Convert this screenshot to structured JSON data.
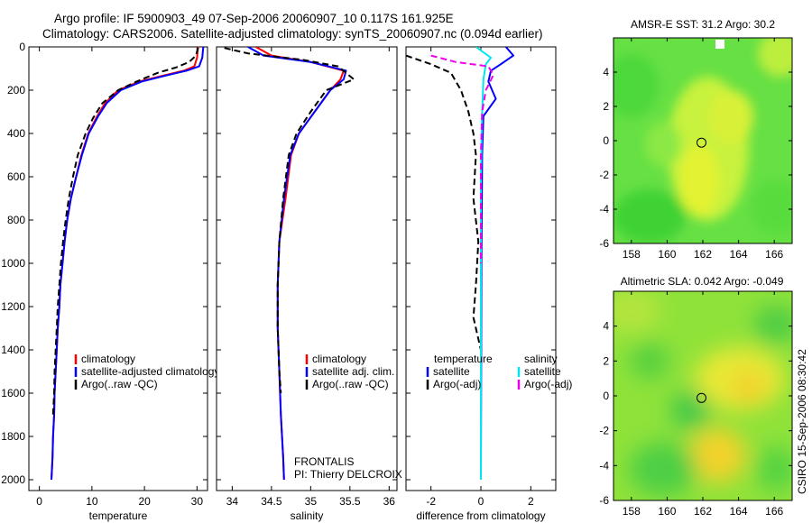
{
  "header": {
    "line1": "Argo profile: IF 5900903_49 07-Sep-2006 20060907_10 0.117S 161.925E",
    "line2": "Climatology: CARS2006. Satellite-adjusted climatology: synTS_20060907.nc (0.094d earlier)"
  },
  "side_credit": "CSIRO 15-Sep-2006 08:30:42",
  "colors": {
    "climatology": "#ff0000",
    "satellite": "#0000ff",
    "argo": "#000000",
    "sal_satellite": "#00e5ee",
    "sal_argo": "#ee00ee"
  },
  "chart_data": [
    {
      "type": "line",
      "id": "temperature",
      "xlabel": "temperature",
      "xlim": [
        -2,
        32
      ],
      "ylim": [
        0,
        2050
      ],
      "y_reversed": true,
      "xticks": [
        0,
        10,
        20,
        30
      ],
      "yticks": [
        0,
        200,
        400,
        600,
        800,
        1000,
        1200,
        1400,
        1600,
        1800,
        2000
      ],
      "legend": [
        "climatology",
        "satellite-adjusted climatology",
        "Argo(..raw -QC)"
      ],
      "series": [
        {
          "name": "climatology",
          "color": "#ff0000",
          "dash": "solid",
          "points": [
            [
              30.2,
              0
            ],
            [
              30.0,
              50
            ],
            [
              29.5,
              90
            ],
            [
              27.5,
              110
            ],
            [
              24.0,
              130
            ],
            [
              19.0,
              160
            ],
            [
              15.0,
              200
            ],
            [
              12.5,
              260
            ],
            [
              11.0,
              320
            ],
            [
              9.3,
              400
            ],
            [
              8.0,
              500
            ],
            [
              7.0,
              600
            ],
            [
              6.0,
              700
            ],
            [
              5.3,
              800
            ],
            [
              4.8,
              900
            ],
            [
              4.4,
              1000
            ],
            [
              4.0,
              1100
            ],
            [
              3.8,
              1200
            ],
            [
              3.5,
              1300
            ],
            [
              3.3,
              1400
            ],
            [
              3.1,
              1500
            ],
            [
              2.9,
              1600
            ],
            [
              2.8,
              1700
            ],
            [
              2.6,
              1800
            ],
            [
              2.5,
              1900
            ],
            [
              2.3,
              2000
            ]
          ]
        },
        {
          "name": "satellite-adjusted climatology",
          "color": "#0000ff",
          "dash": "solid",
          "points": [
            [
              31.2,
              0
            ],
            [
              31.0,
              50
            ],
            [
              30.4,
              90
            ],
            [
              28.0,
              110
            ],
            [
              24.5,
              130
            ],
            [
              19.5,
              160
            ],
            [
              15.5,
              200
            ],
            [
              12.8,
              260
            ],
            [
              11.2,
              320
            ],
            [
              9.4,
              400
            ],
            [
              8.1,
              500
            ],
            [
              7.0,
              600
            ],
            [
              6.0,
              700
            ],
            [
              5.3,
              800
            ],
            [
              4.8,
              900
            ],
            [
              4.4,
              1000
            ],
            [
              4.0,
              1100
            ],
            [
              3.8,
              1200
            ],
            [
              3.5,
              1300
            ],
            [
              3.3,
              1400
            ],
            [
              3.1,
              1500
            ],
            [
              2.9,
              1600
            ],
            [
              2.8,
              1700
            ],
            [
              2.6,
              1800
            ],
            [
              2.5,
              1900
            ],
            [
              2.3,
              2000
            ]
          ]
        },
        {
          "name": "Argo(..raw -QC)",
          "color": "#000000",
          "dash": "dashed",
          "points": [
            [
              30.2,
              5
            ],
            [
              29.8,
              40
            ],
            [
              28.5,
              70
            ],
            [
              26.0,
              95
            ],
            [
              22.5,
              120
            ],
            [
              18.5,
              160
            ],
            [
              15.0,
              200
            ],
            [
              12.0,
              260
            ],
            [
              10.2,
              330
            ],
            [
              8.8,
              400
            ],
            [
              7.3,
              500
            ],
            [
              6.4,
              600
            ],
            [
              5.6,
              700
            ],
            [
              5.0,
              800
            ],
            [
              4.5,
              900
            ],
            [
              4.1,
              1000
            ],
            [
              3.8,
              1100
            ],
            [
              3.5,
              1200
            ],
            [
              3.3,
              1300
            ],
            [
              3.1,
              1400
            ],
            [
              2.9,
              1500
            ],
            [
              2.8,
              1600
            ],
            [
              2.6,
              1700
            ]
          ]
        }
      ]
    },
    {
      "type": "line",
      "id": "salinity",
      "xlabel": "salinity",
      "xlim": [
        33.8,
        36.1
      ],
      "ylim": [
        0,
        2050
      ],
      "y_reversed": true,
      "xticks": [
        34,
        34.5,
        35,
        35.5,
        36
      ],
      "legend": [
        "climatology",
        "satellite adj. clim.",
        "Argo(..raw -QC)"
      ],
      "annotation": [
        "FRONTALIS",
        "PI: Thierry DELCROIX"
      ],
      "series": [
        {
          "name": "climatology",
          "color": "#ff0000",
          "dash": "solid",
          "points": [
            [
              34.3,
              0
            ],
            [
              34.5,
              40
            ],
            [
              35.0,
              70
            ],
            [
              35.42,
              110
            ],
            [
              35.38,
              150
            ],
            [
              35.25,
              200
            ],
            [
              35.05,
              300
            ],
            [
              34.85,
              400
            ],
            [
              34.75,
              500
            ],
            [
              34.68,
              700
            ],
            [
              34.6,
              900
            ],
            [
              34.58,
              1100
            ],
            [
              34.58,
              1300
            ],
            [
              34.6,
              1500
            ],
            [
              34.62,
              1700
            ],
            [
              34.65,
              1900
            ],
            [
              34.66,
              2000
            ]
          ]
        },
        {
          "name": "satellite adj. clim.",
          "color": "#0000ff",
          "dash": "solid",
          "points": [
            [
              34.2,
              0
            ],
            [
              34.4,
              40
            ],
            [
              35.0,
              70
            ],
            [
              35.45,
              110
            ],
            [
              35.42,
              150
            ],
            [
              35.25,
              200
            ],
            [
              35.05,
              300
            ],
            [
              34.85,
              400
            ],
            [
              34.74,
              500
            ],
            [
              34.66,
              700
            ],
            [
              34.6,
              900
            ],
            [
              34.58,
              1100
            ],
            [
              34.58,
              1300
            ],
            [
              34.6,
              1500
            ],
            [
              34.62,
              1700
            ],
            [
              34.65,
              1900
            ],
            [
              34.66,
              2000
            ]
          ]
        },
        {
          "name": "Argo(..raw -QC)",
          "color": "#000000",
          "dash": "dashed",
          "points": [
            [
              33.9,
              5
            ],
            [
              34.2,
              30
            ],
            [
              34.9,
              60
            ],
            [
              35.35,
              90
            ],
            [
              35.55,
              150
            ],
            [
              35.2,
              200
            ],
            [
              35.0,
              300
            ],
            [
              34.82,
              400
            ],
            [
              34.72,
              500
            ],
            [
              34.65,
              700
            ],
            [
              34.6,
              900
            ],
            [
              34.58,
              1100
            ],
            [
              34.58,
              1300
            ],
            [
              34.6,
              1500
            ],
            [
              34.62,
              1600
            ]
          ]
        }
      ]
    },
    {
      "type": "line",
      "id": "difference",
      "xlabel": "difference from climatology",
      "xlim": [
        -3,
        3
      ],
      "ylim": [
        0,
        2050
      ],
      "y_reversed": true,
      "xticks": [
        -2,
        0,
        2
      ],
      "legend_temperature_title": "temperature",
      "legend_salinity_title": "salinity",
      "legend": [
        "satellite",
        "Argo(-adj)",
        "satellite",
        "Argo(-adj)"
      ],
      "series": [
        {
          "name": "temperature satellite",
          "color": "#0000ff",
          "dash": "solid",
          "points": [
            [
              1.0,
              0
            ],
            [
              1.3,
              40
            ],
            [
              0.8,
              80
            ],
            [
              0.4,
              110
            ],
            [
              0.3,
              160
            ],
            [
              0.6,
              240
            ],
            [
              0.1,
              320
            ],
            [
              0.05,
              500
            ],
            [
              0.02,
              1000
            ],
            [
              0.0,
              2000
            ]
          ]
        },
        {
          "name": "temperature Argo(-adj)",
          "color": "#000000",
          "dash": "dashed",
          "points": [
            [
              -3.0,
              40
            ],
            [
              -2.0,
              80
            ],
            [
              -1.2,
              120
            ],
            [
              -0.8,
              200
            ],
            [
              -0.5,
              300
            ],
            [
              -0.3,
              400
            ],
            [
              -0.2,
              500
            ],
            [
              -0.3,
              700
            ],
            [
              -0.1,
              900
            ],
            [
              -0.2,
              1100
            ],
            [
              -0.3,
              1250
            ],
            [
              0.0,
              1400
            ],
            [
              0.0,
              1600
            ]
          ]
        },
        {
          "name": "salinity satellite",
          "color": "#00e5ee",
          "dash": "solid",
          "points": [
            [
              -0.2,
              0
            ],
            [
              0.4,
              50
            ],
            [
              0.2,
              80
            ],
            [
              0.1,
              150
            ],
            [
              0.05,
              300
            ],
            [
              0.0,
              600
            ],
            [
              0.0,
              1000
            ],
            [
              0.0,
              2000
            ]
          ]
        },
        {
          "name": "salinity Argo(-adj)",
          "color": "#ee00ee",
          "dash": "dashed",
          "points": [
            [
              -2.0,
              40
            ],
            [
              -1.0,
              70
            ],
            [
              0.3,
              90
            ],
            [
              0.5,
              130
            ],
            [
              0.2,
              200
            ],
            [
              0.05,
              300
            ],
            [
              0.0,
              500
            ],
            [
              0.0,
              1000
            ]
          ]
        }
      ]
    },
    {
      "type": "heatmap",
      "id": "sst-map",
      "title": "AMSR-E SST: 31.2 Argo: 30.2",
      "xlim": [
        157,
        167
      ],
      "ylim": [
        -6,
        6
      ],
      "xticks": [
        158,
        160,
        162,
        164,
        166
      ],
      "yticks": [
        -6,
        -4,
        -2,
        0,
        2,
        4
      ],
      "profile_location": [
        161.925,
        -0.117
      ]
    },
    {
      "type": "heatmap",
      "id": "sla-map",
      "title": "Altimetric SLA: 0.042 Argo: -0.049",
      "xlim": [
        157,
        167
      ],
      "ylim": [
        -6,
        6
      ],
      "xticks": [
        158,
        160,
        162,
        164,
        166
      ],
      "yticks": [
        -6,
        -4,
        -2,
        0,
        2,
        4
      ],
      "profile_location": [
        161.925,
        -0.117
      ]
    }
  ]
}
